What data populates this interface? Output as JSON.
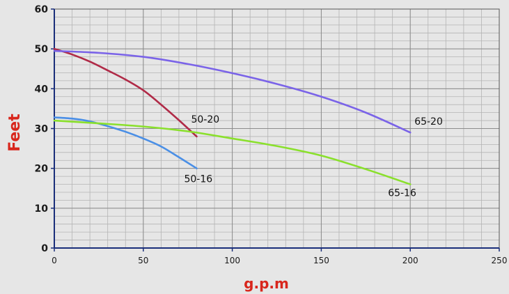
{
  "chart_data": {
    "type": "line",
    "xlabel": "g.p.m",
    "ylabel": "Feet",
    "xlim": [
      0,
      250
    ],
    "ylim": [
      0,
      60
    ],
    "x_major_ticks": [
      0,
      50,
      100,
      150,
      200,
      250
    ],
    "y_major_ticks": [
      0,
      10,
      20,
      30,
      40,
      50,
      60
    ],
    "x_minor_step": 10,
    "y_minor_step": 2,
    "grid": true,
    "legend": "none",
    "colors": {
      "background": "#e6e6e6",
      "grid": "#b4b4b4",
      "axis": "#1a2e7a",
      "axis_title": "#d8261c"
    },
    "series": [
      {
        "name": "50-20",
        "color": "#b02a47",
        "x": [
          0,
          10,
          20,
          30,
          40,
          50,
          60,
          70,
          80
        ],
        "y": [
          50,
          48.6,
          46.8,
          44.6,
          42.3,
          39.6,
          36.0,
          32.1,
          28.0
        ]
      },
      {
        "name": "50-16",
        "color": "#4a8fe6",
        "x": [
          0,
          10,
          20,
          30,
          40,
          50,
          60,
          70,
          80
        ],
        "y": [
          32.8,
          32.5,
          31.8,
          30.6,
          29.2,
          27.5,
          25.5,
          22.8,
          20.0
        ]
      },
      {
        "name": "65-20",
        "color": "#7a63e8",
        "x": [
          0,
          25,
          50,
          75,
          100,
          125,
          150,
          175,
          200
        ],
        "y": [
          49.5,
          49.0,
          48.0,
          46.2,
          43.9,
          41.2,
          38.0,
          34.0,
          29.0
        ]
      },
      {
        "name": "65-16",
        "color": "#8ae02c",
        "x": [
          0,
          25,
          50,
          75,
          100,
          125,
          150,
          175,
          200
        ],
        "y": [
          32.0,
          31.3,
          30.5,
          29.3,
          27.5,
          25.6,
          23.2,
          19.8,
          16.0
        ]
      }
    ]
  }
}
